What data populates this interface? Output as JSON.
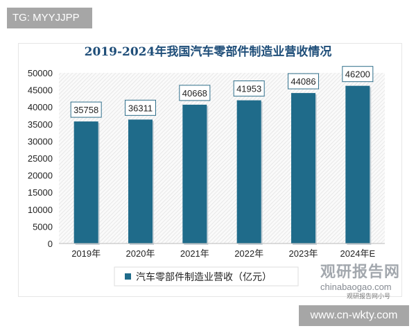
{
  "tags": {
    "tg": "TG: MYYJJPP",
    "url": "www.cn-wkty.com"
  },
  "watermark": {
    "brand": "观研报告网",
    "site": "chinabaogao.com",
    "sub": "观研报告网小号"
  },
  "colors": {
    "bar": "#1f6b8a",
    "title": "#1f4e79",
    "label_border": "#2e6e8a"
  },
  "chart_data": {
    "type": "bar",
    "title": "2019-2024年我国汽车零部件制造业营收情况",
    "categories": [
      "2019年",
      "2020年",
      "2021年",
      "2022年",
      "2023年",
      "2024年E"
    ],
    "series": [
      {
        "name": "汽车零部件制造业营收（亿元）",
        "values": [
          35758,
          36311,
          40668,
          41953,
          44086,
          46200
        ]
      }
    ],
    "ylim": [
      0,
      50000
    ],
    "yticks": [
      0,
      5000,
      10000,
      15000,
      20000,
      25000,
      30000,
      35000,
      40000,
      45000,
      50000
    ],
    "legend": "bottom",
    "grid": false
  }
}
